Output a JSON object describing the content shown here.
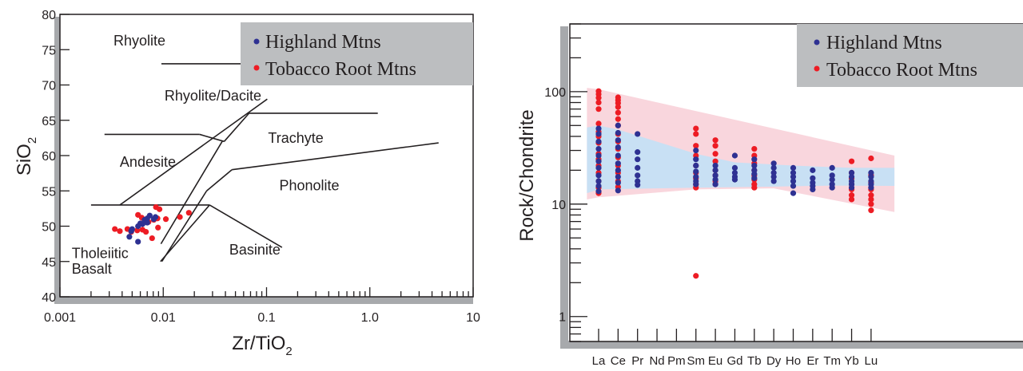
{
  "colors": {
    "highland": "#2e3192",
    "tobacco": "#ed1c24",
    "frame_shadow": "#a7a9ac",
    "legend_bg": "#bcbec0",
    "band_pink": "#f9d6dd",
    "band_blue": "#c8e0f4"
  },
  "chart_data": [
    {
      "type": "scatter",
      "title": "",
      "xlabel_main": "Zr/TiO",
      "xlabel_sub": "2",
      "ylabel_main": "SiO",
      "ylabel_sub": "2",
      "xscale": "log",
      "xlim": [
        0.001,
        10
      ],
      "ylim": [
        40,
        80
      ],
      "xticks": [
        {
          "value": 0.001,
          "label": "0.001"
        },
        {
          "value": 0.01,
          "label": "0.01"
        },
        {
          "value": 0.1,
          "label": "0.1"
        },
        {
          "value": 1,
          "label": "1.0"
        },
        {
          "value": 10,
          "label": "10"
        }
      ],
      "yticks": [
        40,
        45,
        50,
        55,
        60,
        65,
        70,
        75,
        80
      ],
      "legend": {
        "position": "top-right",
        "entries": [
          {
            "label": "Highland Mtns",
            "color": "#2e3192"
          },
          {
            "label": "Tobacco Root Mtns",
            "color": "#ed1c24"
          }
        ]
      },
      "field_labels": [
        {
          "text": "Rhyolite",
          "x": 0.0033,
          "y": 75.6
        },
        {
          "text": "Rhyolite/Dacite",
          "x": 0.0103,
          "y": 67.8
        },
        {
          "text": "Trachyte",
          "x": 0.1035,
          "y": 61.8
        },
        {
          "text": "Andesite",
          "x": 0.0038,
          "y": 58.4
        },
        {
          "text": "Phonolite",
          "x": 0.133,
          "y": 55.1
        },
        {
          "text": "Basinite",
          "x": 0.0436,
          "y": 46.0
        },
        {
          "text": "Tholeiitic",
          "x": 0.0013,
          "y": 45.5
        },
        {
          "text": "Basalt",
          "x": 0.0013,
          "y": 43.3
        }
      ],
      "boundaries": [
        [
          [
            0.0096,
            73.0
          ],
          [
            0.1375,
            73.0
          ]
        ],
        [
          [
            0.0027,
            63.0
          ],
          [
            0.0225,
            63.0
          ]
        ],
        [
          [
            0.0225,
            63.0
          ],
          [
            0.0389,
            62.0
          ]
        ],
        [
          [
            0.0389,
            62.0
          ],
          [
            0.0678,
            66.0
          ]
        ],
        [
          [
            0.0678,
            66.0
          ],
          [
            1.194,
            66.0
          ]
        ],
        [
          [
            0.1016,
            68.0
          ],
          [
            0.0038,
            53.0
          ]
        ],
        [
          [
            0.0372,
            62.0
          ],
          [
            0.0095,
            47.5
          ]
        ],
        [
          [
            0.0263,
            55.0
          ],
          [
            0.0097,
            45.0
          ]
        ],
        [
          [
            0.0263,
            55.0
          ],
          [
            0.0462,
            58.0
          ]
        ],
        [
          [
            0.0462,
            58.0
          ],
          [
            4.63,
            61.8
          ]
        ],
        [
          [
            0.002,
            53.0
          ],
          [
            0.0281,
            53.0
          ]
        ],
        [
          [
            0.0281,
            53.0
          ],
          [
            0.1412,
            47.0
          ]
        ],
        [
          [
            0.0281,
            53.0
          ],
          [
            0.0094,
            45.0
          ]
        ]
      ],
      "series": [
        {
          "name": "Tobacco Root Mtns",
          "color": "#ed1c24",
          "points": [
            [
              0.0034,
              49.6
            ],
            [
              0.0038,
              49.3
            ],
            [
              0.0045,
              49.6
            ],
            [
              0.0049,
              49.2
            ],
            [
              0.0056,
              49.4
            ],
            [
              0.0063,
              49.5
            ],
            [
              0.0068,
              49.2
            ],
            [
              0.0057,
              51.6
            ],
            [
              0.0062,
              51.2
            ],
            [
              0.0072,
              50.6
            ],
            [
              0.0081,
              50.9
            ],
            [
              0.0088,
              51.1
            ],
            [
              0.0089,
              49.8
            ],
            [
              0.0078,
              48.3
            ],
            [
              0.0092,
              52.4
            ],
            [
              0.0085,
              52.7
            ],
            [
              0.0106,
              51.0
            ],
            [
              0.0145,
              51.3
            ],
            [
              0.0177,
              51.9
            ]
          ]
        },
        {
          "name": "Highland Mtns",
          "color": "#2e3192",
          "points": [
            [
              0.0047,
              48.5
            ],
            [
              0.0049,
              49.3
            ],
            [
              0.005,
              49.6
            ],
            [
              0.0057,
              50.0
            ],
            [
              0.006,
              50.4
            ],
            [
              0.0063,
              50.3
            ],
            [
              0.0066,
              50.9
            ],
            [
              0.007,
              51.1
            ],
            [
              0.0074,
              51.5
            ],
            [
              0.0081,
              51.0
            ],
            [
              0.0084,
              51.3
            ],
            [
              0.007,
              50.5
            ],
            [
              0.0057,
              47.8
            ]
          ]
        }
      ]
    },
    {
      "type": "scatter",
      "title": "",
      "xlabel": "",
      "ylabel": "Rock/Chondrite",
      "yscale": "log",
      "ylim": [
        0.6,
        400
      ],
      "yticks": [
        {
          "value": 1,
          "label": "1"
        },
        {
          "value": 10,
          "label": "10"
        },
        {
          "value": 100,
          "label": "100"
        }
      ],
      "categories": [
        "La",
        "Ce",
        "Pr",
        "Nd",
        "Pm",
        "Sm",
        "Eu",
        "Gd",
        "Tb",
        "Dy",
        "Ho",
        "Er",
        "Tm",
        "Yb",
        "Lu"
      ],
      "legend": {
        "position": "top-right",
        "entries": [
          {
            "label": "Highland Mtns",
            "color": "#2e3192"
          },
          {
            "label": "Tobacco Root Mtns",
            "color": "#ed1c24"
          }
        ]
      },
      "bands": [
        {
          "name": "pink",
          "color": "#f9d6dd",
          "upper": [
            [
              -0.6,
              108
            ],
            [
              0,
              105
            ],
            [
              15.2,
              27
            ]
          ],
          "lower": [
            [
              -0.6,
              11
            ],
            [
              0,
              11.5
            ],
            [
              5,
              13.5
            ],
            [
              9,
              13.8
            ],
            [
              15.2,
              8.5
            ]
          ]
        },
        {
          "name": "blue",
          "color": "#c8e0f4",
          "upper": [
            [
              -0.6,
              48
            ],
            [
              0,
              50
            ],
            [
              1,
              46
            ],
            [
              5,
              28
            ],
            [
              7,
              23.5
            ],
            [
              10,
              22
            ],
            [
              13,
              21
            ],
            [
              15.2,
              21
            ]
          ],
          "lower": [
            [
              -0.6,
              12.5
            ],
            [
              0,
              13.5
            ],
            [
              5,
              14
            ],
            [
              9,
              14.3
            ],
            [
              12,
              14.6
            ],
            [
              15.2,
              14.5
            ]
          ]
        }
      ],
      "series": [
        {
          "name": "Tobacco Root Mtns",
          "color": "#ed1c24",
          "points": [
            [
              "La",
              101
            ],
            [
              "La",
              95
            ],
            [
              "La",
              88
            ],
            [
              "La",
              80
            ],
            [
              "La",
              70
            ],
            [
              "La",
              52
            ],
            [
              "La",
              44
            ],
            [
              "La",
              40
            ],
            [
              "La",
              35
            ],
            [
              "La",
              28
            ],
            [
              "La",
              25
            ],
            [
              "La",
              22
            ],
            [
              "La",
              19
            ],
            [
              "La",
              16
            ],
            [
              "La",
              14
            ],
            [
              "La",
              12.5
            ],
            [
              "Ce",
              89
            ],
            [
              "Ce",
              84
            ],
            [
              "Ce",
              79
            ],
            [
              "Ce",
              73
            ],
            [
              "Ce",
              65
            ],
            [
              "Ce",
              57
            ],
            [
              "Ce",
              50
            ],
            [
              "Ce",
              42
            ],
            [
              "Ce",
              36
            ],
            [
              "Ce",
              31
            ],
            [
              "Ce",
              26
            ],
            [
              "Ce",
              22
            ],
            [
              "Ce",
              19
            ],
            [
              "Ce",
              16
            ],
            [
              "Ce",
              14.2
            ],
            [
              "Sm",
              47
            ],
            [
              "Sm",
              42
            ],
            [
              "Sm",
              33
            ],
            [
              "Sm",
              27
            ],
            [
              "Sm",
              22
            ],
            [
              "Sm",
              19
            ],
            [
              "Sm",
              17
            ],
            [
              "Sm",
              15
            ],
            [
              "Sm",
              14
            ],
            [
              "Sm",
              2.3
            ],
            [
              "Eu",
              37
            ],
            [
              "Eu",
              33
            ],
            [
              "Eu",
              28
            ],
            [
              "Eu",
              24
            ],
            [
              "Eu",
              20
            ],
            [
              "Eu",
              18
            ],
            [
              "Eu",
              16
            ],
            [
              "Eu",
              15
            ],
            [
              "Tb",
              31
            ],
            [
              "Tb",
              27
            ],
            [
              "Tb",
              23
            ],
            [
              "Tb",
              20
            ],
            [
              "Tb",
              18
            ],
            [
              "Tb",
              16.5
            ],
            [
              "Tb",
              15
            ],
            [
              "Tb",
              14
            ],
            [
              "Yb",
              24
            ],
            [
              "Yb",
              19
            ],
            [
              "Yb",
              17
            ],
            [
              "Yb",
              15
            ],
            [
              "Yb",
              13.5
            ],
            [
              "Yb",
              12
            ],
            [
              "Yb",
              11
            ],
            [
              "Lu",
              25.5
            ],
            [
              "Lu",
              18
            ],
            [
              "Lu",
              15.5
            ],
            [
              "Lu",
              13.5
            ],
            [
              "Lu",
              12
            ],
            [
              "Lu",
              11
            ],
            [
              "Lu",
              10
            ],
            [
              "Lu",
              8.8
            ]
          ]
        },
        {
          "name": "Highland Mtns",
          "color": "#2e3192",
          "points": [
            [
              "La",
              47
            ],
            [
              "La",
              42
            ],
            [
              "La",
              36
            ],
            [
              "La",
              31
            ],
            [
              "La",
              27
            ],
            [
              "La",
              24
            ],
            [
              "La",
              21
            ],
            [
              "La",
              18
            ],
            [
              "La",
              16
            ],
            [
              "La",
              14.5
            ],
            [
              "La",
              13
            ],
            [
              "Ce",
              50
            ],
            [
              "Ce",
              43
            ],
            [
              "Ce",
              37
            ],
            [
              "Ce",
              32
            ],
            [
              "Ce",
              27
            ],
            [
              "Ce",
              23
            ],
            [
              "Ce",
              20
            ],
            [
              "Ce",
              17.5
            ],
            [
              "Ce",
              15.5
            ],
            [
              "Ce",
              13.2
            ],
            [
              "Pr",
              42
            ],
            [
              "Pr",
              29
            ],
            [
              "Pr",
              25
            ],
            [
              "Pr",
              21
            ],
            [
              "Pr",
              18
            ],
            [
              "Pr",
              16
            ],
            [
              "Pr",
              14.8
            ],
            [
              "Sm",
              30
            ],
            [
              "Sm",
              25
            ],
            [
              "Sm",
              22
            ],
            [
              "Sm",
              19.5
            ],
            [
              "Sm",
              17.5
            ],
            [
              "Sm",
              16
            ],
            [
              "Sm",
              15
            ],
            [
              "Eu",
              22
            ],
            [
              "Eu",
              20
            ],
            [
              "Eu",
              18
            ],
            [
              "Eu",
              16.5
            ],
            [
              "Eu",
              15
            ],
            [
              "Gd",
              27
            ],
            [
              "Gd",
              21
            ],
            [
              "Gd",
              19
            ],
            [
              "Gd",
              17.5
            ],
            [
              "Gd",
              16.5
            ],
            [
              "Tb",
              25
            ],
            [
              "Tb",
              22
            ],
            [
              "Tb",
              20
            ],
            [
              "Tb",
              18.5
            ],
            [
              "Tb",
              17
            ],
            [
              "Dy",
              23
            ],
            [
              "Dy",
              21
            ],
            [
              "Dy",
              19
            ],
            [
              "Dy",
              17.5
            ],
            [
              "Dy",
              16
            ],
            [
              "Ho",
              21
            ],
            [
              "Ho",
              19
            ],
            [
              "Ho",
              17.5
            ],
            [
              "Ho",
              16
            ],
            [
              "Ho",
              14.5
            ],
            [
              "Ho",
              12.5
            ],
            [
              "Er",
              20
            ],
            [
              "Er",
              17
            ],
            [
              "Er",
              15.5
            ],
            [
              "Er",
              14.5
            ],
            [
              "Er",
              13.5
            ],
            [
              "Tm",
              21
            ],
            [
              "Tm",
              18
            ],
            [
              "Tm",
              16.5
            ],
            [
              "Tm",
              15
            ],
            [
              "Tm",
              14
            ],
            [
              "Yb",
              19
            ],
            [
              "Yb",
              17.5
            ],
            [
              "Yb",
              16
            ],
            [
              "Yb",
              15
            ],
            [
              "Yb",
              14
            ],
            [
              "Lu",
              19
            ],
            [
              "Lu",
              17.5
            ],
            [
              "Lu",
              16
            ],
            [
              "Lu",
              15
            ],
            [
              "Lu",
              14
            ]
          ]
        }
      ]
    }
  ]
}
